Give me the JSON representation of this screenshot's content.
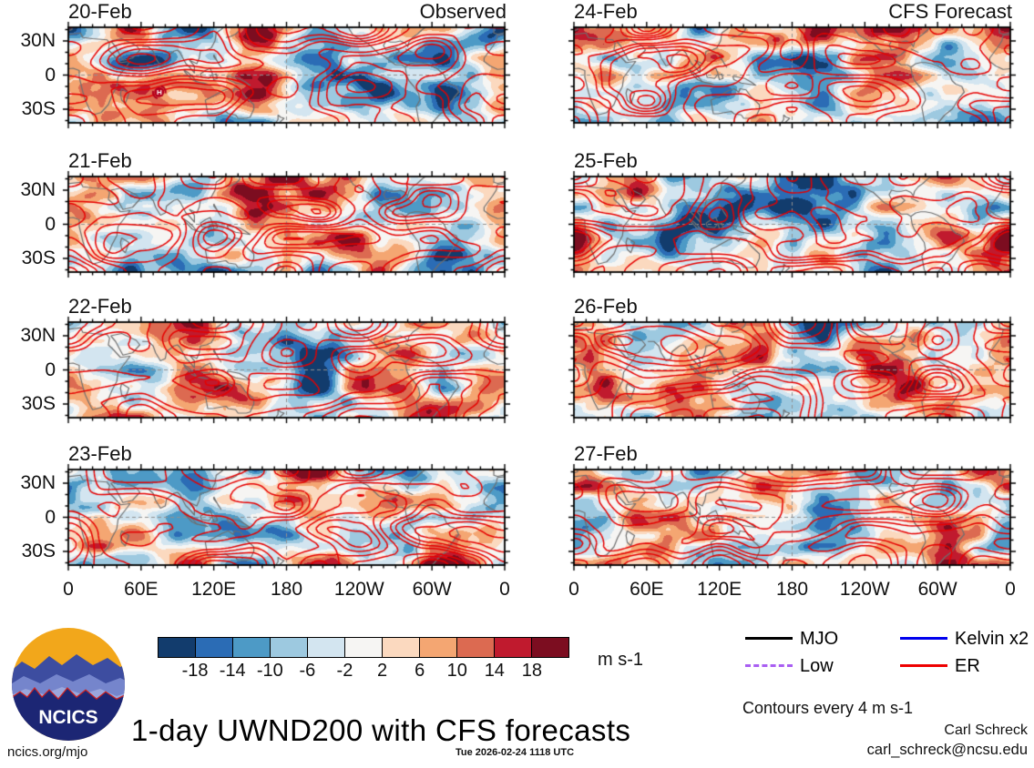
{
  "title": "1-day UWND200 with CFS forecasts",
  "logo": {
    "text": "NCICS"
  },
  "footer": {
    "site": "ncics.org/mjo",
    "timestamp": "Tue 2026-02-24 1118 UTC",
    "credit_name": "Carl Schreck",
    "credit_email": "carl_schreck@ncsu.edu"
  },
  "chart_data": {
    "type": "heatmap",
    "variable": "UWND200",
    "description": "Zonal wind at 200 hPa: filled anomalies with wave-filtered contours, observed days and CFS forecast days",
    "columns": [
      "Observed",
      "CFS Forecast"
    ],
    "panels": [
      {
        "date": "20-Feb",
        "column": "Observed"
      },
      {
        "date": "21-Feb",
        "column": "Observed"
      },
      {
        "date": "22-Feb",
        "column": "Observed"
      },
      {
        "date": "23-Feb",
        "column": "Observed"
      },
      {
        "date": "24-Feb",
        "column": "CFS Forecast"
      },
      {
        "date": "25-Feb",
        "column": "CFS Forecast"
      },
      {
        "date": "26-Feb",
        "column": "CFS Forecast"
      },
      {
        "date": "27-Feb",
        "column": "CFS Forecast"
      }
    ],
    "x_ticks": [
      "0",
      "60E",
      "120E",
      "180",
      "120W",
      "60W",
      "0"
    ],
    "y_ticks": [
      "30N",
      "0",
      "30S"
    ],
    "lon_range_deg": [
      0,
      360
    ],
    "lat_range_deg": [
      -42,
      42
    ],
    "grid_lines": {
      "equator": true,
      "dateline_180": true
    },
    "colorbar": {
      "levels": [
        -18,
        -14,
        -10,
        -6,
        -2,
        2,
        6,
        10,
        14,
        18
      ],
      "colors": [
        "#123c6d",
        "#2b6cb5",
        "#4d9ac6",
        "#9dc9e0",
        "#d3e5f0",
        "#f6f5f3",
        "#fbd9bf",
        "#f4a672",
        "#dc6a51",
        "#c01a2e",
        "#7c0d20"
      ],
      "unit": "m s-1"
    },
    "legend": [
      {
        "label": "MJO",
        "color": "#000000",
        "style": "solid"
      },
      {
        "label": "Kelvin x2",
        "color": "#0000ee",
        "style": "solid"
      },
      {
        "label": "Low",
        "color": "#a95ef2",
        "style": "dashed"
      },
      {
        "label": "ER",
        "color": "#ee0000",
        "style": "solid"
      }
    ],
    "contour_note": "Contours every 4 m s-1",
    "contour_color": "#e60000",
    "storm_marker": {
      "panel": "20-Feb",
      "symbol": "tropical-cyclone-icon",
      "lon_deg": 75,
      "lat_deg": -15,
      "color": "#b3001e"
    }
  }
}
